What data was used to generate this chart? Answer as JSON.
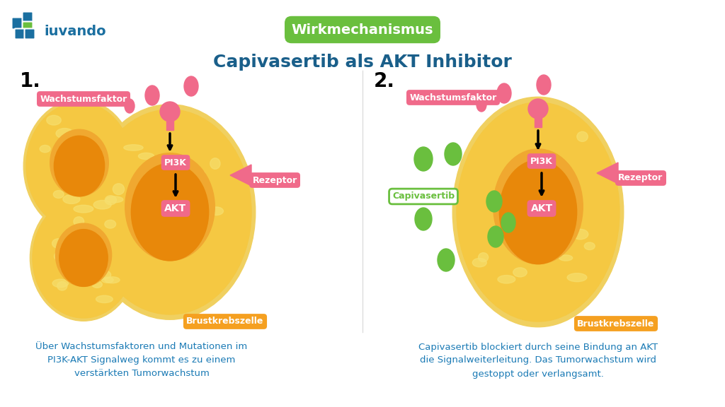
{
  "bg_color": "#ffffff",
  "title_main": "Capivasertib als AKT Inhibitor",
  "title_tag": "Wirkmechanismus",
  "title_tag_color": "#6abf3e",
  "title_main_color": "#1a5f8a",
  "pink_color": "#f06a8a",
  "orange_cell_outer": "#f5c842",
  "orange_cell_inner_light": "#f0a830",
  "orange_cell_inner": "#e8880a",
  "orange_label_color": "#f5a020",
  "green_color": "#6abf3e",
  "text_color_desc": "#1a7ab5",
  "desc1_line1": "Über Wachstumsfaktoren und Mutationen im",
  "desc1_line2": "PI3K-AKT Signalweg kommt es zu einem",
  "desc1_line3": "verstärkten Tumorwachstum",
  "desc2_line1": "Capivasertib blockiert durch seine Bindung an AKT",
  "desc2_line2": "die Signalweiterleitung. Das Tumorwachstum wird",
  "desc2_line3": "gestoppt oder verlangsamt.",
  "logo_blue": "#1a6fa0",
  "logo_green": "#6abf3e"
}
